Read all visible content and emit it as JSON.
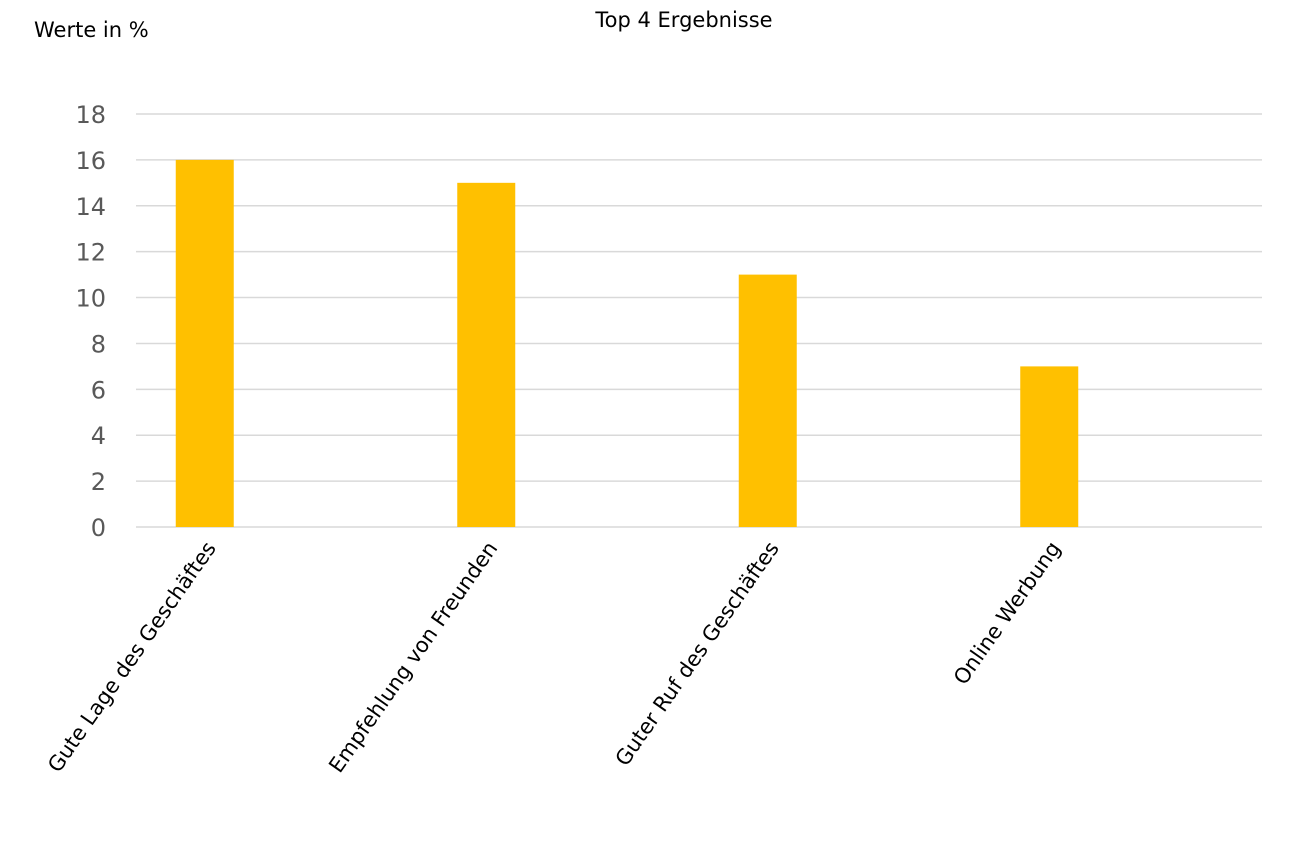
{
  "chart_data": {
    "type": "bar",
    "title": "Top 4 Ergebnisse",
    "ylabel": "Werte in %",
    "xlabel": "",
    "categories": [
      "Gute Lage des Geschäftes",
      "Empfehlung von Freunden",
      "Guter Ruf des Geschäftes",
      "Online Werbung"
    ],
    "values": [
      16,
      15,
      11,
      7
    ],
    "ylim": [
      0,
      18
    ],
    "yticks": [
      0,
      2,
      4,
      6,
      8,
      10,
      12,
      14,
      16,
      18
    ],
    "grid": true,
    "legend": "none",
    "bar_color": "#FFC000"
  }
}
